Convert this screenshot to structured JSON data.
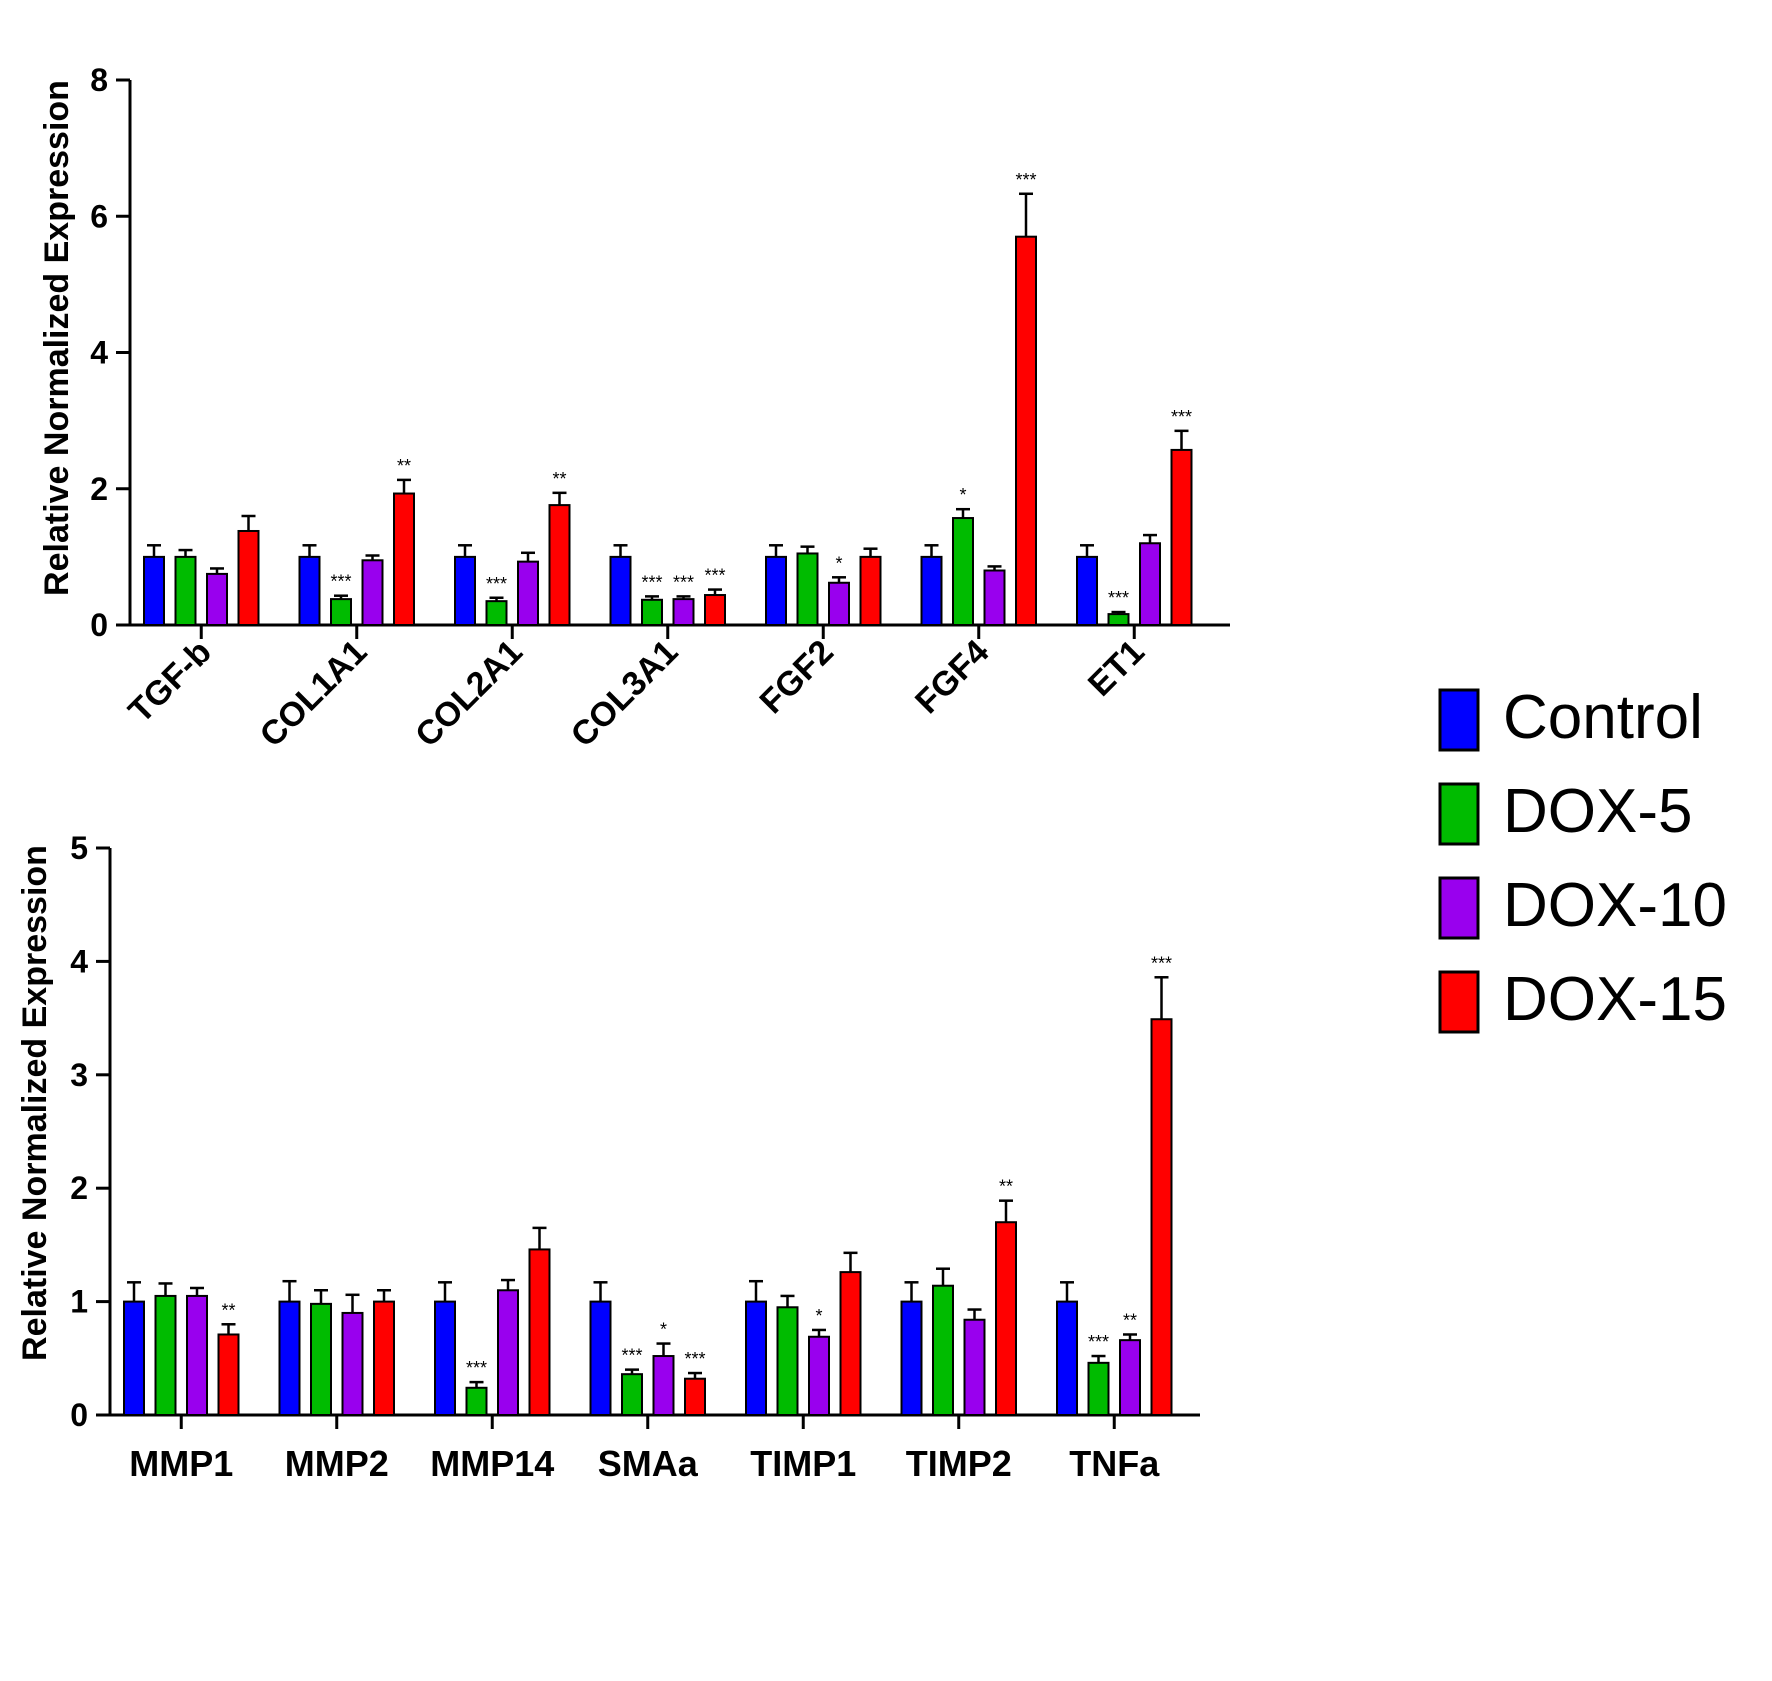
{
  "colors": {
    "Control": "#0000ff",
    "DOX-5": "#00bb00",
    "DOX-10": "#9900ee",
    "DOX-15": "#ff0000"
  },
  "legend": {
    "items": [
      "Control",
      "DOX-5",
      "DOX-10",
      "DOX-15"
    ]
  },
  "chart_data": [
    {
      "type": "bar",
      "ylabel": "Relative Normalized Expression",
      "xlabel": "",
      "title": "",
      "ylim": [
        0,
        8
      ],
      "yticks": [
        0,
        2,
        4,
        6,
        8
      ],
      "categories": [
        "TGF-b",
        "COL1A1",
        "COL2A1",
        "COL3A1",
        "FGF2",
        "FGF4",
        "ET1"
      ],
      "series": [
        {
          "name": "Control",
          "values": [
            1.0,
            1.0,
            1.0,
            1.0,
            1.0,
            1.0,
            1.0
          ],
          "errors": [
            0.17,
            0.17,
            0.17,
            0.17,
            0.17,
            0.17,
            0.17
          ],
          "significance": [
            "",
            "",
            "",
            "",
            "",
            "",
            ""
          ]
        },
        {
          "name": "DOX-5",
          "values": [
            1.0,
            0.38,
            0.35,
            0.37,
            1.05,
            1.57,
            0.16
          ],
          "errors": [
            0.1,
            0.05,
            0.05,
            0.05,
            0.1,
            0.13,
            0.03
          ],
          "significance": [
            "",
            "***",
            "***",
            "***",
            "",
            "*",
            "***"
          ]
        },
        {
          "name": "DOX-10",
          "values": [
            0.75,
            0.95,
            0.93,
            0.38,
            0.62,
            0.8,
            1.2
          ],
          "errors": [
            0.08,
            0.07,
            0.13,
            0.04,
            0.08,
            0.06,
            0.12
          ],
          "significance": [
            "",
            "",
            "",
            "***",
            "*",
            "",
            ""
          ]
        },
        {
          "name": "DOX-15",
          "values": [
            1.38,
            1.93,
            1.76,
            0.44,
            1.0,
            5.7,
            2.57
          ],
          "errors": [
            0.22,
            0.2,
            0.18,
            0.08,
            0.12,
            0.63,
            0.28
          ],
          "significance": [
            "",
            "**",
            "**",
            "***",
            "",
            "***",
            "***"
          ]
        }
      ]
    },
    {
      "type": "bar",
      "ylabel": "Relative Normalized Expression",
      "xlabel": "",
      "title": "",
      "ylim": [
        0,
        5
      ],
      "yticks": [
        0,
        1,
        2,
        3,
        4,
        5
      ],
      "categories": [
        "MMP1",
        "MMP2",
        "MMP14",
        "SMAa",
        "TIMP1",
        "TIMP2",
        "TNFa"
      ],
      "series": [
        {
          "name": "Control",
          "values": [
            1.0,
            1.0,
            1.0,
            1.0,
            1.0,
            1.0,
            1.0
          ],
          "errors": [
            0.17,
            0.18,
            0.17,
            0.17,
            0.18,
            0.17,
            0.17
          ],
          "significance": [
            "",
            "",
            "",
            "",
            "",
            "",
            ""
          ]
        },
        {
          "name": "DOX-5",
          "values": [
            1.05,
            0.98,
            0.24,
            0.36,
            0.95,
            1.14,
            0.46
          ],
          "errors": [
            0.11,
            0.12,
            0.05,
            0.04,
            0.1,
            0.15,
            0.06
          ],
          "significance": [
            "",
            "",
            "***",
            "***",
            "",
            "",
            "***"
          ]
        },
        {
          "name": "DOX-10",
          "values": [
            1.05,
            0.9,
            1.1,
            0.52,
            0.69,
            0.84,
            0.66
          ],
          "errors": [
            0.07,
            0.16,
            0.09,
            0.11,
            0.06,
            0.09,
            0.05
          ],
          "significance": [
            "",
            "",
            "",
            "*",
            "*",
            "",
            "**"
          ]
        },
        {
          "name": "DOX-15",
          "values": [
            0.71,
            1.0,
            1.46,
            0.32,
            1.26,
            1.7,
            3.49
          ],
          "errors": [
            0.09,
            0.1,
            0.19,
            0.05,
            0.17,
            0.19,
            0.37
          ],
          "significance": [
            "**",
            "",
            "",
            "***",
            "",
            "**",
            "***"
          ]
        }
      ]
    }
  ]
}
